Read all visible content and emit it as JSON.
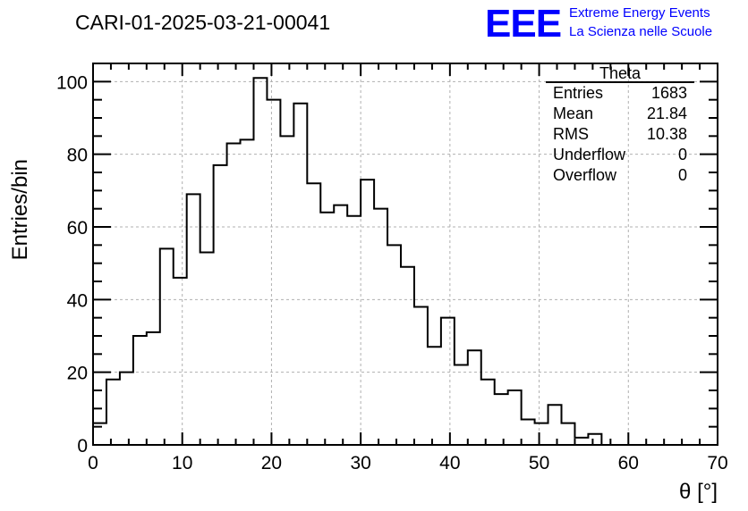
{
  "header": {
    "title": "CARI-01-2025-03-21-00041",
    "logo_letters": "EEE",
    "logo_line1": "Extreme Energy Events",
    "logo_line2": "La Scienza nelle Scuole"
  },
  "stats_box": {
    "name": "Theta",
    "rows": [
      {
        "label": "Entries",
        "value": "1683"
      },
      {
        "label": "Mean",
        "value": "21.84"
      },
      {
        "label": "RMS",
        "value": "10.38"
      },
      {
        "label": "Underflow",
        "value": "0"
      },
      {
        "label": "Overflow",
        "value": "0"
      }
    ]
  },
  "chart_data": {
    "type": "bar",
    "style": "step-histogram",
    "title": "CARI-01-2025-03-21-00041",
    "xlabel": "θ [°]",
    "ylabel": "Entries/bin",
    "xlim": [
      0,
      70
    ],
    "ylim": [
      0,
      105
    ],
    "grid": true,
    "bin_edges_start": 0,
    "bin_width": 1.5,
    "values": [
      6,
      18,
      20,
      30,
      31,
      54,
      46,
      69,
      53,
      77,
      83,
      84,
      101,
      95,
      85,
      94,
      72,
      64,
      66,
      63,
      73,
      65,
      55,
      49,
      38,
      27,
      35,
      22,
      26,
      18,
      14,
      15,
      7,
      6,
      11,
      6,
      2,
      3,
      0
    ],
    "x_ticks": [
      0,
      10,
      20,
      30,
      40,
      50,
      60,
      70
    ],
    "y_ticks": [
      0,
      20,
      40,
      60,
      80,
      100
    ]
  }
}
